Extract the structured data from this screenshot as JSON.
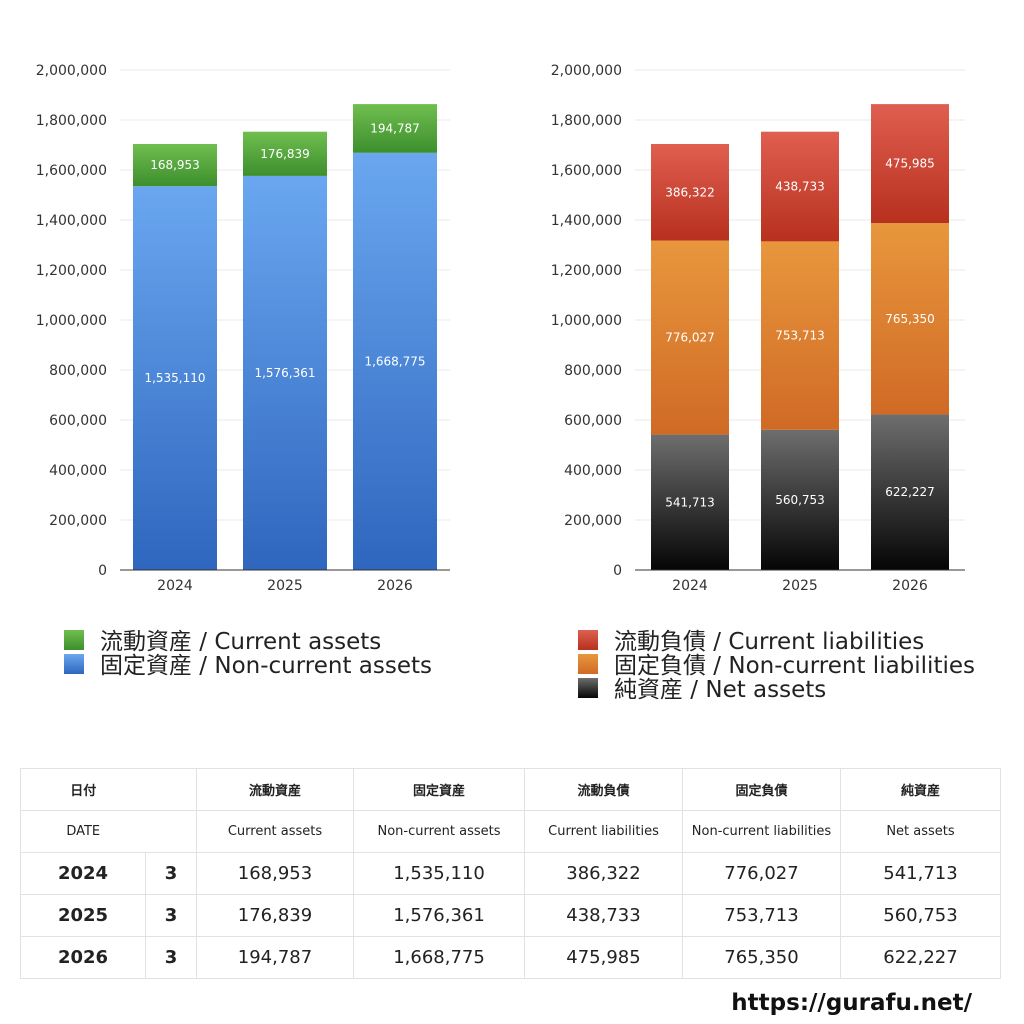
{
  "chart_data": [
    {
      "type": "bar",
      "stacked": true,
      "categories": [
        "2024",
        "2025",
        "2026"
      ],
      "ylim": [
        0,
        2000000
      ],
      "yticks": [
        0,
        200000,
        400000,
        600000,
        800000,
        1000000,
        1200000,
        1400000,
        1600000,
        1800000,
        2000000
      ],
      "ytick_labels": [
        "0",
        "200,000",
        "400,000",
        "600,000",
        "800,000",
        "1,000,000",
        "1,200,000",
        "1,400,000",
        "1,600,000",
        "1,800,000",
        "2,000,000"
      ],
      "grid": true,
      "legend_position": "bottom",
      "series": [
        {
          "name": "固定資産 / Non-current assets",
          "values": [
            1535110,
            1576361,
            1668775
          ],
          "labels": [
            "1,535,110",
            "1,576,361",
            "1,668,775"
          ],
          "color_top": "#6aa7f0",
          "color_bottom": "#2f66be",
          "legend_color": "#4a86dc"
        },
        {
          "name": "流動資産 / Current assets",
          "values": [
            168953,
            176839,
            194787
          ],
          "labels": [
            "168,953",
            "176,839",
            "194,787"
          ],
          "color_top": "#6fbe4f",
          "color_bottom": "#3d8f2e",
          "legend_color": "#56a73f"
        }
      ],
      "legend_order": [
        1,
        0
      ]
    },
    {
      "type": "bar",
      "stacked": true,
      "categories": [
        "2024",
        "2025",
        "2026"
      ],
      "ylim": [
        0,
        2000000
      ],
      "yticks": [
        0,
        200000,
        400000,
        600000,
        800000,
        1000000,
        1200000,
        1400000,
        1600000,
        1800000,
        2000000
      ],
      "ytick_labels": [
        "0",
        "200,000",
        "400,000",
        "600,000",
        "800,000",
        "1,000,000",
        "1,200,000",
        "1,400,000",
        "1,600,000",
        "1,800,000",
        "2,000,000"
      ],
      "grid": true,
      "legend_position": "bottom",
      "series": [
        {
          "name": "純資産 / Net assets",
          "values": [
            541713,
            560753,
            622227
          ],
          "labels": [
            "541,713",
            "560,753",
            "622,227"
          ],
          "color_top": "#6e6e6e",
          "color_bottom": "#050505",
          "legend_color": "#3a3a3a"
        },
        {
          "name": "固定負債 / Non-current liabilities",
          "values": [
            776027,
            753713,
            765350
          ],
          "labels": [
            "776,027",
            "753,713",
            "765,350"
          ],
          "color_top": "#e8973d",
          "color_bottom": "#d06a25",
          "legend_color": "#e0832f"
        },
        {
          "name": "流動負債 / Current liabilities",
          "values": [
            386322,
            438733,
            475985
          ],
          "labels": [
            "386,322",
            "438,733",
            "475,985"
          ],
          "color_top": "#df5f50",
          "color_bottom": "#b8301e",
          "legend_color": "#cc4535"
        }
      ],
      "legend_order": [
        2,
        1,
        0
      ]
    }
  ],
  "table": {
    "headers_ja": [
      "日付",
      "流動資産",
      "固定資産",
      "流動負債",
      "固定負債",
      "純資産"
    ],
    "headers_en": [
      "DATE",
      "Current assets",
      "Non-current assets",
      "Current liabilities",
      "Non-current liabilities",
      "Net assets"
    ],
    "rows": [
      {
        "year": "2024",
        "month": "3",
        "values": [
          "168,953",
          "1,535,110",
          "386,322",
          "776,027",
          "541,713"
        ]
      },
      {
        "year": "2025",
        "month": "3",
        "values": [
          "176,839",
          "1,576,361",
          "438,733",
          "753,713",
          "560,753"
        ]
      },
      {
        "year": "2026",
        "month": "3",
        "values": [
          "194,787",
          "1,668,775",
          "475,985",
          "765,350",
          "622,227"
        ]
      }
    ]
  },
  "footer": {
    "url": "https://gurafu.net/"
  }
}
